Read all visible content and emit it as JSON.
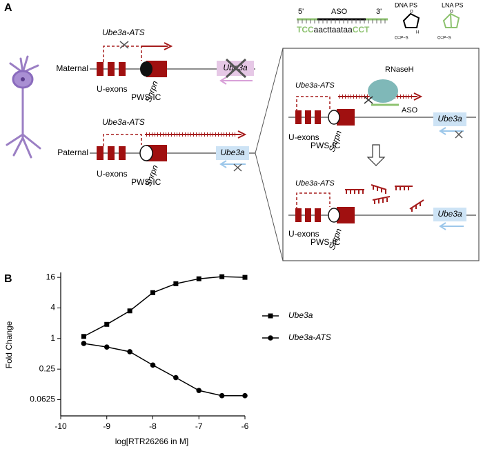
{
  "panel_a": {
    "label": "A",
    "aso": {
      "five": "5'",
      "name": "ASO",
      "three": "3'",
      "seq_left": "TCC",
      "seq_mid": "aacttaataa",
      "seq_right": "CCT",
      "dna_ps": "DNA PS",
      "lna_ps": "LNA PS",
      "dna_o": "O",
      "dna_h": "H",
      "dna_p": "O=P−S",
      "lna_o": "O",
      "lna_p": "O=P−S"
    },
    "maternal": {
      "label": "Maternal",
      "transcript": "Ube3a-ATS",
      "u_exons": "U-exons",
      "pws_ic": "PWS-IC",
      "snrpn": "Snrpn",
      "gene": "Ube3a"
    },
    "paternal": {
      "label": "Paternal",
      "transcript": "Ube3a-ATS",
      "u_exons": "U-exons",
      "pws_ic": "PWS-IC",
      "snrpn": "Snrpn",
      "gene": "Ube3a"
    },
    "inset_top": {
      "transcript": "Ube3a-ATS",
      "enzyme": "RNaseH",
      "aso": "ASO",
      "u_exons": "U-exons",
      "pws_ic": "PWS-IC",
      "snrpn": "Snrpn",
      "gene": "Ube3a"
    },
    "inset_bottom": {
      "transcript": "Ube3a-ATS",
      "u_exons": "U-exons",
      "pws_ic": "PWS-IC",
      "snrpn": "Snrpn",
      "gene": "Ube3a"
    }
  },
  "panel_b": {
    "label": "B"
  },
  "chart_data": {
    "type": "line",
    "x_label": "log[RTR26266 in M]",
    "y_label": "Fold Change",
    "x": [
      -9.5,
      -9,
      -8.5,
      -8,
      -7.5,
      -7,
      -6.5,
      -6
    ],
    "series": [
      {
        "name": "Ube3a",
        "color": "#000000",
        "marker": "square",
        "values": [
          1.1,
          1.9,
          3.5,
          8,
          12,
          15,
          16.5,
          16
        ]
      },
      {
        "name": "Ube3a-ATS",
        "color": "#000000",
        "marker": "circle",
        "values": [
          0.8,
          0.68,
          0.55,
          0.3,
          0.17,
          0.095,
          0.075,
          0.075
        ]
      }
    ],
    "xlim": [
      -10,
      -6
    ],
    "xticks": [
      -10,
      -9,
      -8,
      -7,
      -6
    ],
    "ylim": [
      0.03,
      20
    ],
    "yticks": [
      0.0625,
      0.25,
      1,
      4,
      16
    ],
    "ylog": true,
    "grid": false
  }
}
